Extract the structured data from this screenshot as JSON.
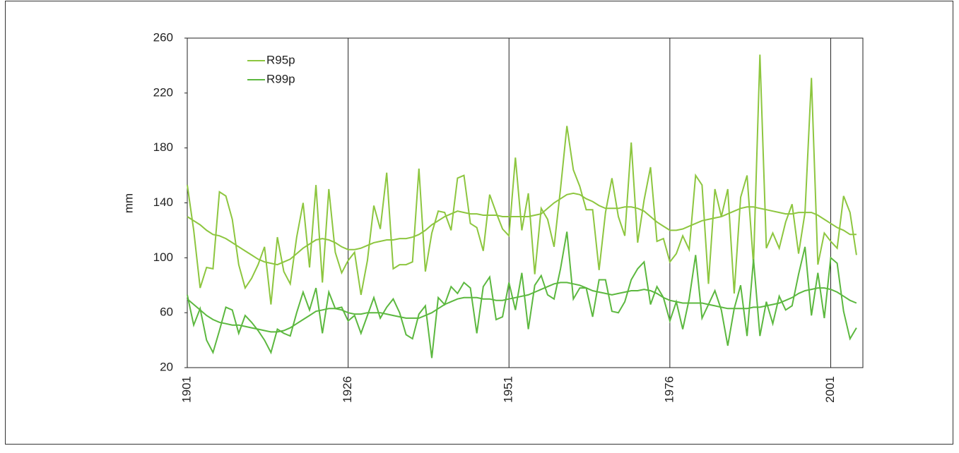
{
  "chart_data": {
    "type": "line",
    "ylabel": "mm",
    "x": [
      1901,
      1902,
      1903,
      1904,
      1905,
      1906,
      1907,
      1908,
      1909,
      1910,
      1911,
      1912,
      1913,
      1914,
      1915,
      1916,
      1917,
      1918,
      1919,
      1920,
      1921,
      1922,
      1923,
      1924,
      1925,
      1926,
      1927,
      1928,
      1929,
      1930,
      1931,
      1932,
      1933,
      1934,
      1935,
      1936,
      1937,
      1938,
      1939,
      1940,
      1941,
      1942,
      1943,
      1944,
      1945,
      1946,
      1947,
      1948,
      1949,
      1950,
      1951,
      1952,
      1953,
      1954,
      1955,
      1956,
      1957,
      1958,
      1959,
      1960,
      1961,
      1962,
      1963,
      1964,
      1965,
      1966,
      1967,
      1968,
      1969,
      1970,
      1971,
      1972,
      1973,
      1974,
      1975,
      1976,
      1977,
      1978,
      1979,
      1980,
      1981,
      1982,
      1983,
      1984,
      1985,
      1986,
      1987,
      1988,
      1989,
      1990,
      1991,
      1992,
      1993,
      1994,
      1995,
      1996,
      1997,
      1998,
      1999,
      2000,
      2001,
      2002,
      2003,
      2004,
      2005
    ],
    "xlim": [
      1901,
      2006
    ],
    "xticks": [
      1901,
      1926,
      1951,
      1976,
      2001
    ],
    "ylim": [
      20,
      260
    ],
    "yticks": [
      20,
      60,
      100,
      140,
      180,
      220,
      260
    ],
    "grid": true,
    "legend": "upper left",
    "series": [
      {
        "name": "R95p",
        "color": "#8dc63f",
        "values": [
          153,
          120,
          78,
          93,
          92,
          148,
          145,
          128,
          95,
          78,
          85,
          95,
          108,
          66,
          115,
          90,
          81,
          115,
          140,
          93,
          153,
          82,
          150,
          104,
          89,
          98,
          104,
          73,
          98,
          138,
          121,
          162,
          92,
          95,
          95,
          97,
          165,
          90,
          118,
          134,
          133,
          120,
          158,
          160,
          125,
          122,
          105,
          146,
          133,
          121,
          116,
          173,
          120,
          147,
          88,
          136,
          128,
          108,
          150,
          196,
          164,
          152,
          135,
          135,
          91,
          133,
          158,
          130,
          116,
          184,
          111,
          142,
          166,
          112,
          114,
          97,
          103,
          116,
          106,
          160,
          153,
          81,
          150,
          130,
          150,
          74,
          144,
          160,
          95,
          248,
          107,
          118,
          107,
          126,
          139,
          103,
          133,
          231,
          95,
          118,
          112,
          107,
          145,
          133,
          102
        ],
        "trend": [
          130,
          127,
          124,
          120,
          117,
          116,
          114,
          111,
          108,
          105,
          102,
          99,
          97,
          96,
          95,
          97,
          99,
          103,
          107,
          110,
          113,
          114,
          113,
          111,
          108,
          106,
          106,
          107,
          109,
          111,
          112,
          113,
          113,
          114,
          114,
          115,
          117,
          120,
          124,
          127,
          130,
          132,
          134,
          133,
          132,
          132,
          131,
          131,
          131,
          130,
          130,
          130,
          130,
          130,
          131,
          132,
          136,
          140,
          143,
          146,
          147,
          146,
          143,
          141,
          138,
          136,
          136,
          136,
          137,
          137,
          136,
          134,
          130,
          126,
          123,
          120,
          120,
          121,
          123,
          125,
          127,
          128,
          129,
          130,
          132,
          134,
          136,
          137,
          137,
          136,
          135,
          134,
          133,
          132,
          132,
          133,
          133,
          133,
          131,
          128,
          125,
          122,
          120,
          117,
          117
        ]
      },
      {
        "name": "R99p",
        "color": "#5cb83f",
        "values": [
          73,
          51,
          63,
          40,
          31,
          47,
          64,
          62,
          45,
          58,
          53,
          47,
          40,
          31,
          48,
          45,
          43,
          60,
          75,
          62,
          78,
          45,
          75,
          63,
          64,
          54,
          58,
          45,
          58,
          71,
          56,
          64,
          70,
          60,
          44,
          41,
          59,
          65,
          27,
          71,
          66,
          79,
          74,
          82,
          78,
          45,
          79,
          86,
          55,
          57,
          82,
          62,
          89,
          48,
          80,
          87,
          73,
          70,
          92,
          119,
          70,
          78,
          78,
          57,
          84,
          84,
          61,
          60,
          68,
          84,
          92,
          97,
          66,
          79,
          71,
          54,
          68,
          48,
          70,
          102,
          56,
          66,
          76,
          62,
          36,
          63,
          80,
          43,
          99,
          43,
          68,
          52,
          72,
          62,
          65,
          88,
          108,
          58,
          89,
          56,
          100,
          96,
          61,
          41,
          49
        ],
        "trend": [
          70,
          66,
          62,
          58,
          55,
          53,
          52,
          51,
          51,
          50,
          49,
          48,
          47,
          46,
          46,
          47,
          49,
          52,
          55,
          58,
          61,
          62,
          63,
          63,
          62,
          60,
          59,
          59,
          60,
          60,
          60,
          59,
          58,
          57,
          56,
          56,
          56,
          58,
          60,
          63,
          66,
          68,
          70,
          71,
          71,
          71,
          70,
          70,
          69,
          69,
          70,
          71,
          72,
          73,
          75,
          77,
          79,
          81,
          82,
          82,
          81,
          80,
          78,
          76,
          75,
          74,
          73,
          74,
          75,
          76,
          76,
          77,
          76,
          74,
          71,
          69,
          68,
          67,
          67,
          67,
          67,
          66,
          65,
          64,
          63,
          63,
          63,
          63,
          64,
          64,
          65,
          66,
          67,
          69,
          71,
          74,
          76,
          77,
          78,
          78,
          77,
          75,
          72,
          69,
          67
        ]
      }
    ]
  }
}
